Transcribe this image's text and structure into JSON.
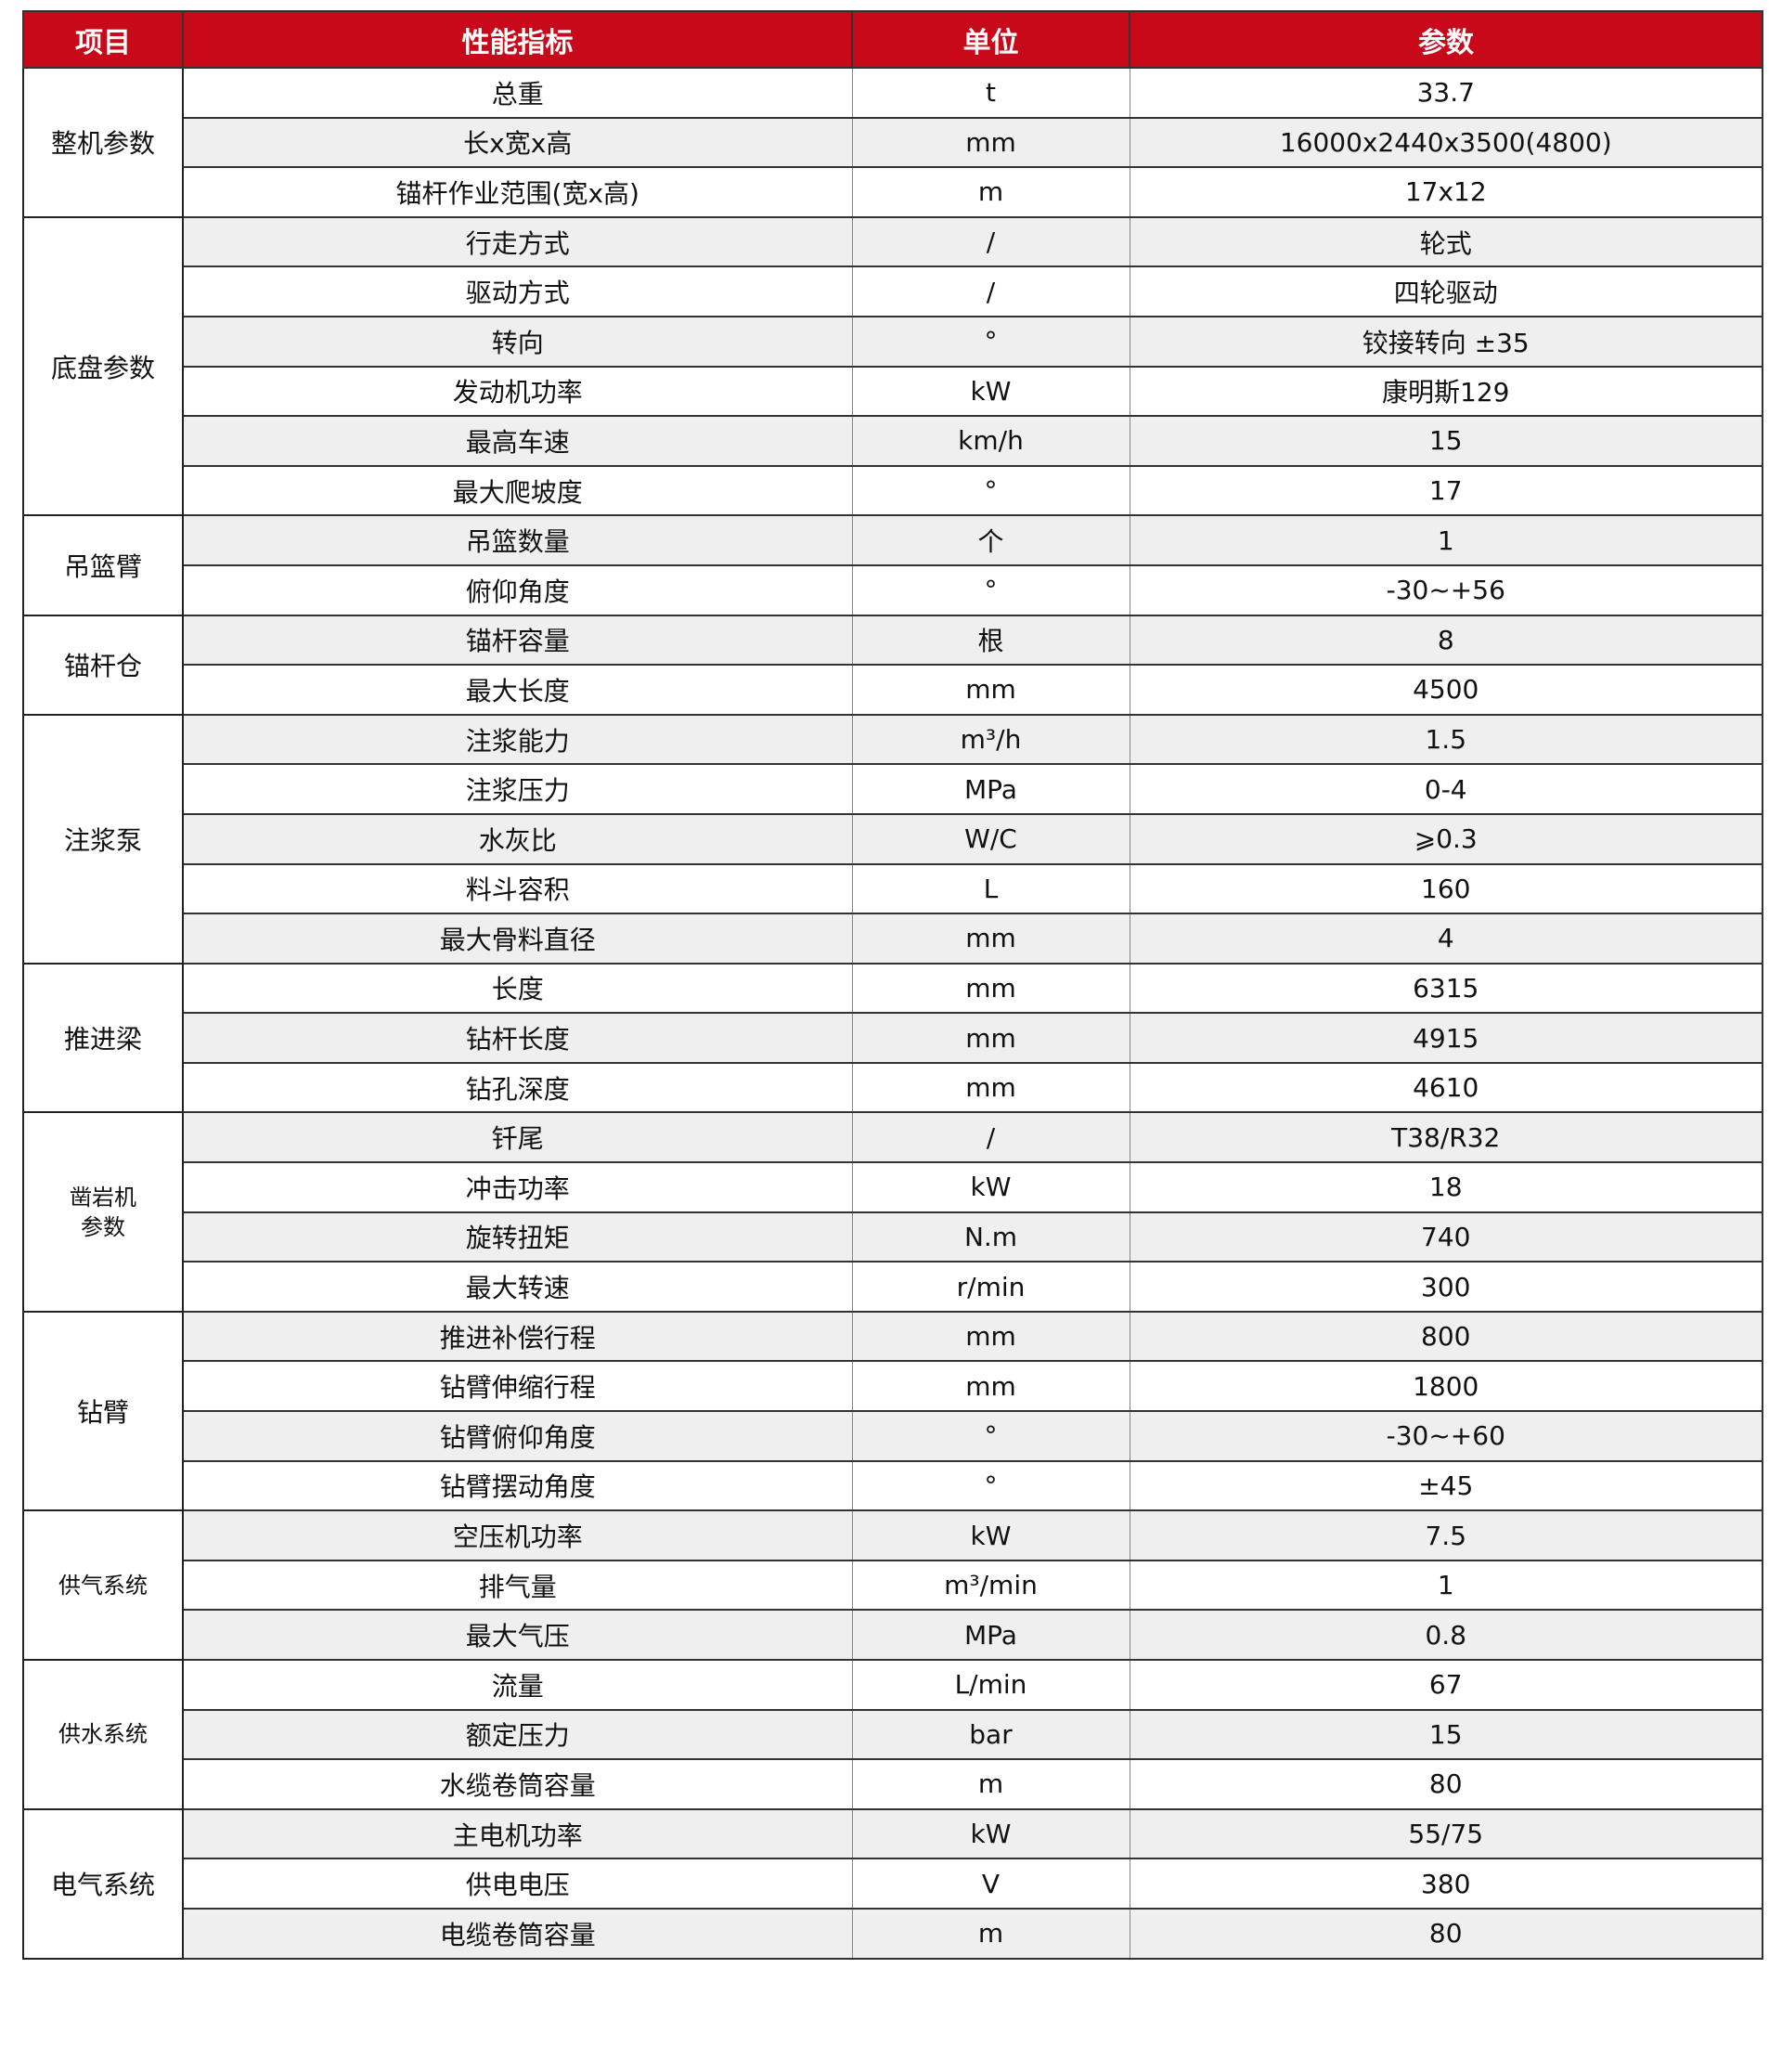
{
  "header": {
    "item": "项目",
    "indicator": "性能指标",
    "unit": "单位",
    "param": "参数"
  },
  "colors": {
    "header_bg": "#c8091a",
    "row_alt": "#efefef"
  },
  "groups": [
    {
      "name": "整机参数",
      "rows": [
        [
          "总重",
          "t",
          "33.7"
        ],
        [
          "长x宽x高",
          "mm",
          "16000x2440x3500(4800)"
        ],
        [
          "锚杆作业范围(宽x高)",
          "m",
          "17x12"
        ]
      ]
    },
    {
      "name": "底盘参数",
      "rows": [
        [
          "行走方式",
          "/",
          "轮式"
        ],
        [
          "驱动方式",
          "/",
          "四轮驱动"
        ],
        [
          "转向",
          "°",
          "铰接转向  ±35"
        ],
        [
          "发动机功率",
          "kW",
          "康明斯129"
        ],
        [
          "最高车速",
          "km/h",
          "15"
        ],
        [
          "最大爬坡度",
          "°",
          "17"
        ]
      ]
    },
    {
      "name": "吊篮臂",
      "rows": [
        [
          "吊篮数量",
          "个",
          "1"
        ],
        [
          "俯仰角度",
          "°",
          "-30~+56"
        ]
      ]
    },
    {
      "name": "锚杆仓",
      "rows": [
        [
          "锚杆容量",
          "根",
          "8"
        ],
        [
          "最大长度",
          "mm",
          "4500"
        ]
      ]
    },
    {
      "name": "注浆泵",
      "rows": [
        [
          "注浆能力",
          "m³/h",
          "1.5"
        ],
        [
          "注浆压力",
          "MPa",
          "0-4"
        ],
        [
          "水灰比",
          "W/C",
          "⩾0.3"
        ],
        [
          "料斗容积",
          "L",
          "160"
        ],
        [
          "最大骨料直径",
          "mm",
          "4"
        ]
      ]
    },
    {
      "name": "推进梁",
      "rows": [
        [
          "长度",
          "mm",
          "6315"
        ],
        [
          "钻杆长度",
          "mm",
          "4915"
        ],
        [
          "钻孔深度",
          "mm",
          "4610"
        ]
      ]
    },
    {
      "name": "凿岩机\n参数",
      "small": true,
      "rows": [
        [
          "钎尾",
          "/",
          "T38/R32"
        ],
        [
          "冲击功率",
          "kW",
          "18"
        ],
        [
          "旋转扭矩",
          "N.m",
          "740"
        ],
        [
          "最大转速",
          "r/min",
          "300"
        ]
      ]
    },
    {
      "name": "钻臂",
      "rows": [
        [
          "推进补偿行程",
          "mm",
          "800"
        ],
        [
          "钻臂伸缩行程",
          "mm",
          "1800"
        ],
        [
          "钻臂俯仰角度",
          "°",
          "-30~+60"
        ],
        [
          "钻臂摆动角度",
          "°",
          "±45"
        ]
      ]
    },
    {
      "name": "供气系统",
      "small": true,
      "rows": [
        [
          "空压机功率",
          "kW",
          "7.5"
        ],
        [
          "排气量",
          "m³/min",
          "1"
        ],
        [
          "最大气压",
          "MPa",
          "0.8"
        ]
      ]
    },
    {
      "name": "供水系统",
      "small": true,
      "rows": [
        [
          "流量",
          "L/min",
          "67"
        ],
        [
          "额定压力",
          "bar",
          "15"
        ],
        [
          "水缆卷筒容量",
          "m",
          "80"
        ]
      ]
    },
    {
      "name": "电气系统",
      "rows": [
        [
          "主电机功率",
          "kW",
          "55/75"
        ],
        [
          "供电电压",
          "V",
          "380"
        ],
        [
          "电缆卷筒容量",
          "m",
          "80"
        ]
      ]
    }
  ]
}
